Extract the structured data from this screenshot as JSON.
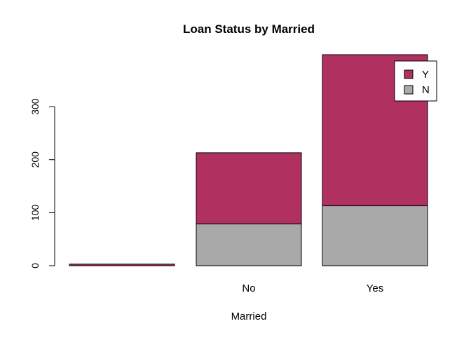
{
  "chart_data": {
    "type": "bar",
    "stacked": true,
    "title": "Loan Status by Married",
    "xlabel": "Married",
    "ylabel": "",
    "categories": [
      "",
      "No",
      "Yes"
    ],
    "series": [
      {
        "name": "N",
        "color": "#A9A9A9",
        "values": [
          0,
          79,
          113
        ]
      },
      {
        "name": "Y",
        "color": "#B03060",
        "values": [
          3,
          134,
          285
        ]
      }
    ],
    "yticks": [
      "0",
      "100",
      "200",
      "300"
    ],
    "ylim": [
      0,
      398
    ],
    "grid": false,
    "legend": {
      "position": "top-right",
      "entries": [
        "Y",
        "N"
      ]
    }
  }
}
